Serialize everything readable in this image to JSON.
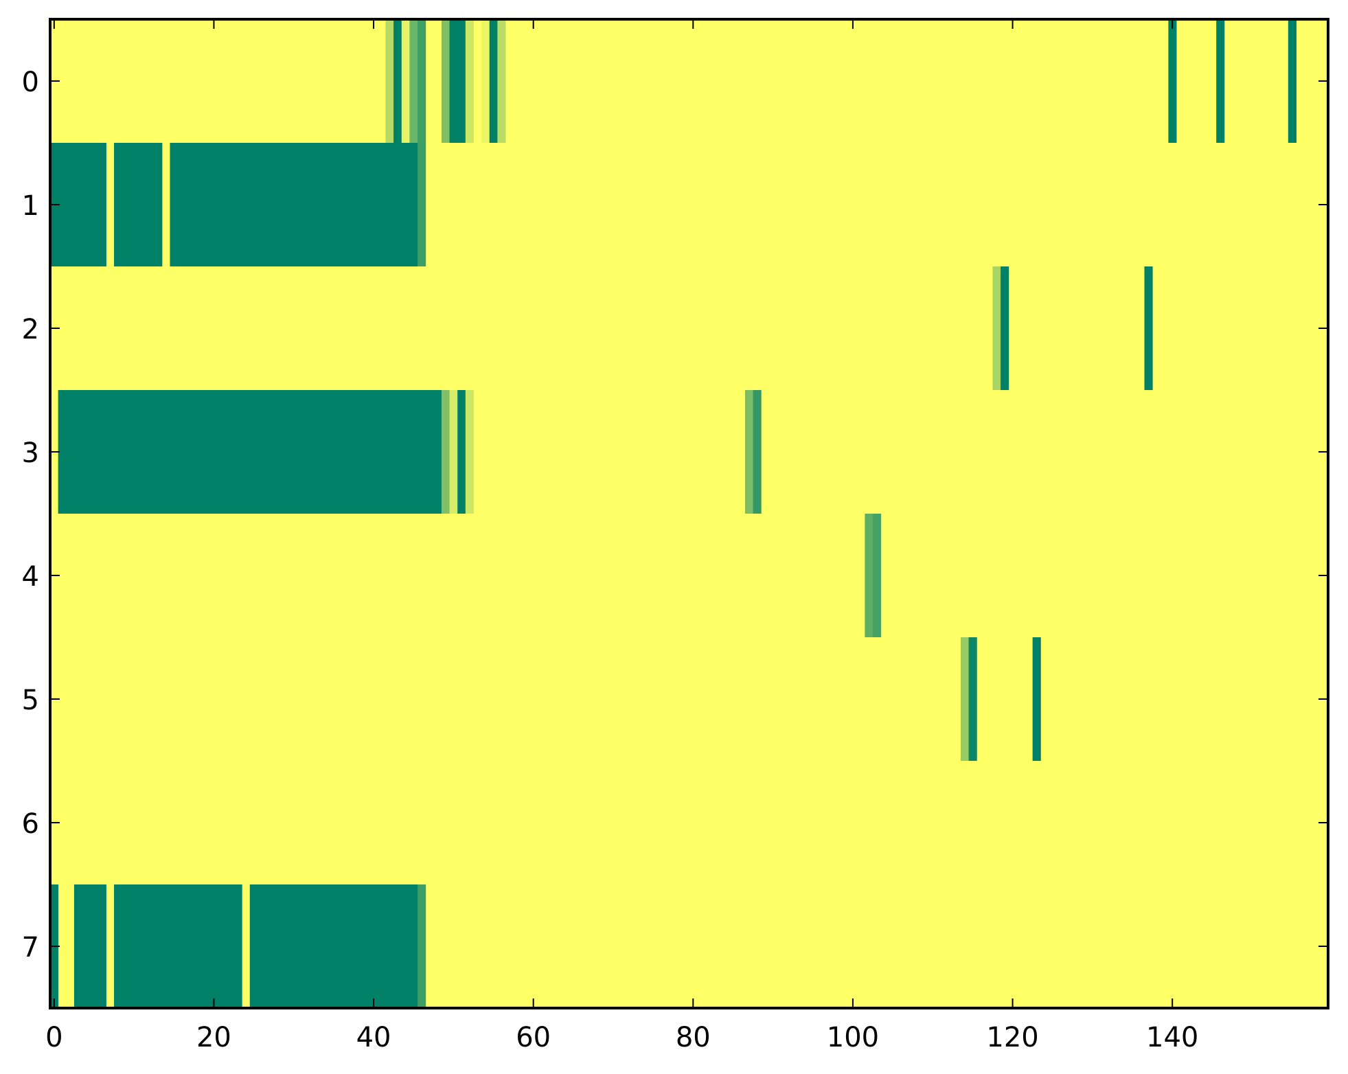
{
  "chart_data": {
    "type": "heatmap",
    "title": "",
    "xlabel": "",
    "ylabel": "",
    "colormap": "summer",
    "color_low": "#008066",
    "color_high": "#ffff66",
    "value_range": [
      0,
      1
    ],
    "n_rows": 8,
    "n_cols": 160,
    "background_value": 1,
    "xlim": [
      -0.5,
      159.5
    ],
    "ylim": [
      7.5,
      -0.5
    ],
    "x_ticks": [
      0,
      20,
      40,
      60,
      80,
      100,
      120,
      140
    ],
    "x_tick_labels": [
      "0",
      "20",
      "40",
      "60",
      "80",
      "100",
      "120",
      "140"
    ],
    "y_ticks": [
      0,
      1,
      2,
      3,
      4,
      5,
      6,
      7
    ],
    "y_tick_labels": [
      "0",
      "1",
      "2",
      "3",
      "4",
      "5",
      "6",
      "7"
    ],
    "grid": false,
    "legend": "none",
    "rows": [
      {
        "row": 0,
        "segments": [
          [
            42,
            42,
            0.71
          ],
          [
            43,
            43,
            0
          ],
          [
            44,
            44,
            0.91
          ],
          [
            45,
            45,
            0.42
          ],
          [
            46,
            46,
            0.24
          ],
          [
            49,
            49,
            0.5
          ],
          [
            50,
            51,
            0
          ],
          [
            52,
            52,
            0.8
          ],
          [
            54,
            54,
            0.92
          ],
          [
            55,
            55,
            0
          ],
          [
            56,
            56,
            0.72
          ],
          [
            140,
            140,
            0
          ],
          [
            146,
            146,
            0
          ],
          [
            155,
            155,
            0
          ]
        ]
      },
      {
        "row": 1,
        "segments": [
          [
            0,
            6,
            0
          ],
          [
            8,
            13,
            0
          ],
          [
            15,
            45,
            0
          ],
          [
            46,
            46,
            0.24
          ]
        ]
      },
      {
        "row": 2,
        "segments": [
          [
            118,
            118,
            0.66
          ],
          [
            119,
            119,
            0
          ],
          [
            137,
            137,
            0
          ]
        ]
      },
      {
        "row": 3,
        "segments": [
          [
            1,
            48,
            0
          ],
          [
            49,
            49,
            0.5
          ],
          [
            50,
            50,
            0.85
          ],
          [
            51,
            51,
            0
          ],
          [
            52,
            52,
            0.8
          ],
          [
            87,
            87,
            0.48
          ],
          [
            88,
            88,
            0.2
          ]
        ]
      },
      {
        "row": 4,
        "segments": [
          [
            102,
            102,
            0.37
          ],
          [
            103,
            103,
            0.27
          ]
        ]
      },
      {
        "row": 5,
        "segments": [
          [
            114,
            114,
            0.59
          ],
          [
            115,
            115,
            0.06
          ],
          [
            123,
            123,
            0
          ]
        ]
      },
      {
        "row": 6,
        "segments": []
      },
      {
        "row": 7,
        "segments": [
          [
            0,
            0,
            0
          ],
          [
            3,
            6,
            0
          ],
          [
            8,
            23,
            0
          ],
          [
            25,
            45,
            0
          ],
          [
            46,
            46,
            0.24
          ]
        ]
      }
    ]
  }
}
